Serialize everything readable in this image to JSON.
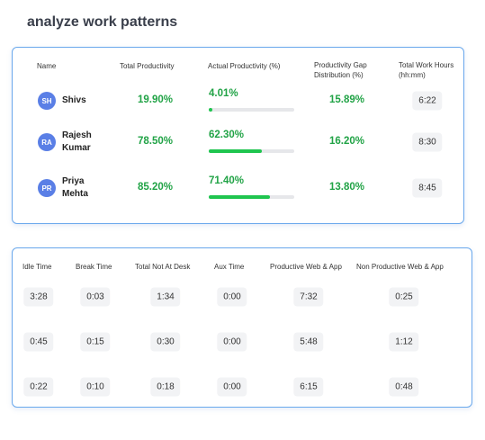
{
  "header": {
    "title": "analyze work patterns"
  },
  "productivity_table": {
    "columns": [
      "Name",
      "Total Productivity",
      "Actual Productivity (%)",
      "Productivity Gap Distribution (%)",
      "Total Work Hours (hh:mm)"
    ],
    "rows": [
      {
        "initials": "SH",
        "name": "Shivs",
        "total": "19.90%",
        "actual": {
          "value": 4.01,
          "label": "4.01%"
        },
        "gap": "15.89%",
        "hours": "6:22"
      },
      {
        "initials": "RA",
        "name": "Rajesh Kumar",
        "total": "78.50%",
        "actual": {
          "value": 62.3,
          "label": "62.30%"
        },
        "gap": "16.20%",
        "hours": "8:30"
      },
      {
        "initials": "PR",
        "name": "Priya Mehta",
        "total": "85.20%",
        "actual": {
          "value": 71.4,
          "label": "71.40%"
        },
        "gap": "13.80%",
        "hours": "8:45"
      }
    ]
  },
  "time_table": {
    "columns": [
      "Idle Time",
      "Break Time",
      "Total Not At Desk",
      "Aux Time",
      "Productive Web & App",
      "Non Productive Web & App"
    ],
    "rows": [
      [
        "3:28",
        "0:03",
        "1:34",
        "0:00",
        "7:32",
        "0:25"
      ],
      [
        "0:45",
        "0:15",
        "0:30",
        "0:00",
        "5:48",
        "1:12"
      ],
      [
        "0:22",
        "0:10",
        "0:18",
        "0:00",
        "6:15",
        "0:48"
      ]
    ]
  }
}
